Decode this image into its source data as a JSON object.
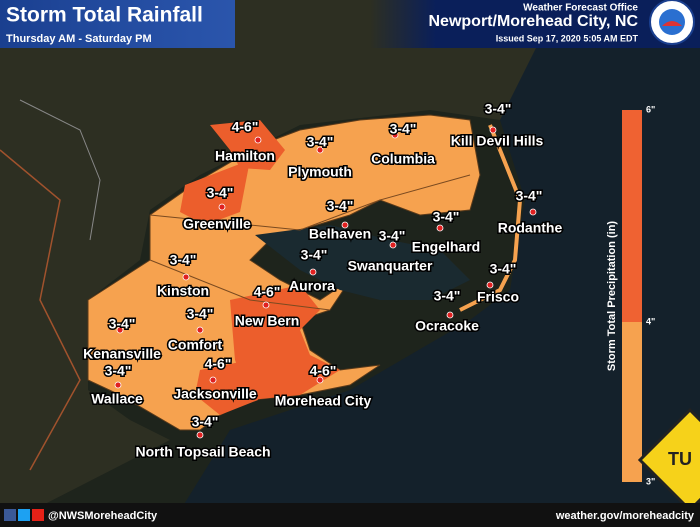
{
  "header": {
    "title": "Storm Total Rainfall",
    "subtitle": "Thursday AM - Saturday PM",
    "office_label": "Weather Forecast Office",
    "office": "Newport/Morehead City, NC",
    "issued": "Issued Sep 17, 2020 5:05 AM EDT"
  },
  "cities": [
    {
      "amount": "4-6\"",
      "name": "Hamilton"
    },
    {
      "amount": "3-4\"",
      "name": "Plymouth"
    },
    {
      "amount": "3-4\"",
      "name": "Columbia"
    },
    {
      "amount": "3-4\"",
      "name": "Kill Devil Hills"
    },
    {
      "amount": "3-4\"",
      "name": "Greenville"
    },
    {
      "amount": "3-4\"",
      "name": "Belhaven"
    },
    {
      "amount": "3-4\"",
      "name": "Engelhard"
    },
    {
      "amount": "3-4\"",
      "name": "Rodanthe"
    },
    {
      "amount": "3-4\"",
      "name": "Swanquarter"
    },
    {
      "amount": "3-4\"",
      "name": "Kinston"
    },
    {
      "amount": "3-4\"",
      "name": "Aurora"
    },
    {
      "amount": "3-4\"",
      "name": "Frisco"
    },
    {
      "amount": "4-6\"",
      "name": "New Bern"
    },
    {
      "amount": "3-4\"",
      "name": "Ocracoke"
    },
    {
      "amount": "3-4\"",
      "name": "Kenansville"
    },
    {
      "amount": "3-4\"",
      "name": "Comfort"
    },
    {
      "amount": "4-6\"",
      "name": "Jacksonville"
    },
    {
      "amount": "3-4\"",
      "name": "Wallace"
    },
    {
      "amount": "4-6\"",
      "name": "Morehead City"
    },
    {
      "amount": "3-4\"",
      "name": "North Topsail Beach"
    }
  ],
  "legend": {
    "title": "Storm Total Precipitation (in)",
    "ticks": [
      "6\"",
      "4\"",
      "3\""
    ]
  },
  "footer": {
    "social": "@NWSMoreheadCity",
    "website": "weather.gov/moreheadcity"
  },
  "sign": "TU"
}
